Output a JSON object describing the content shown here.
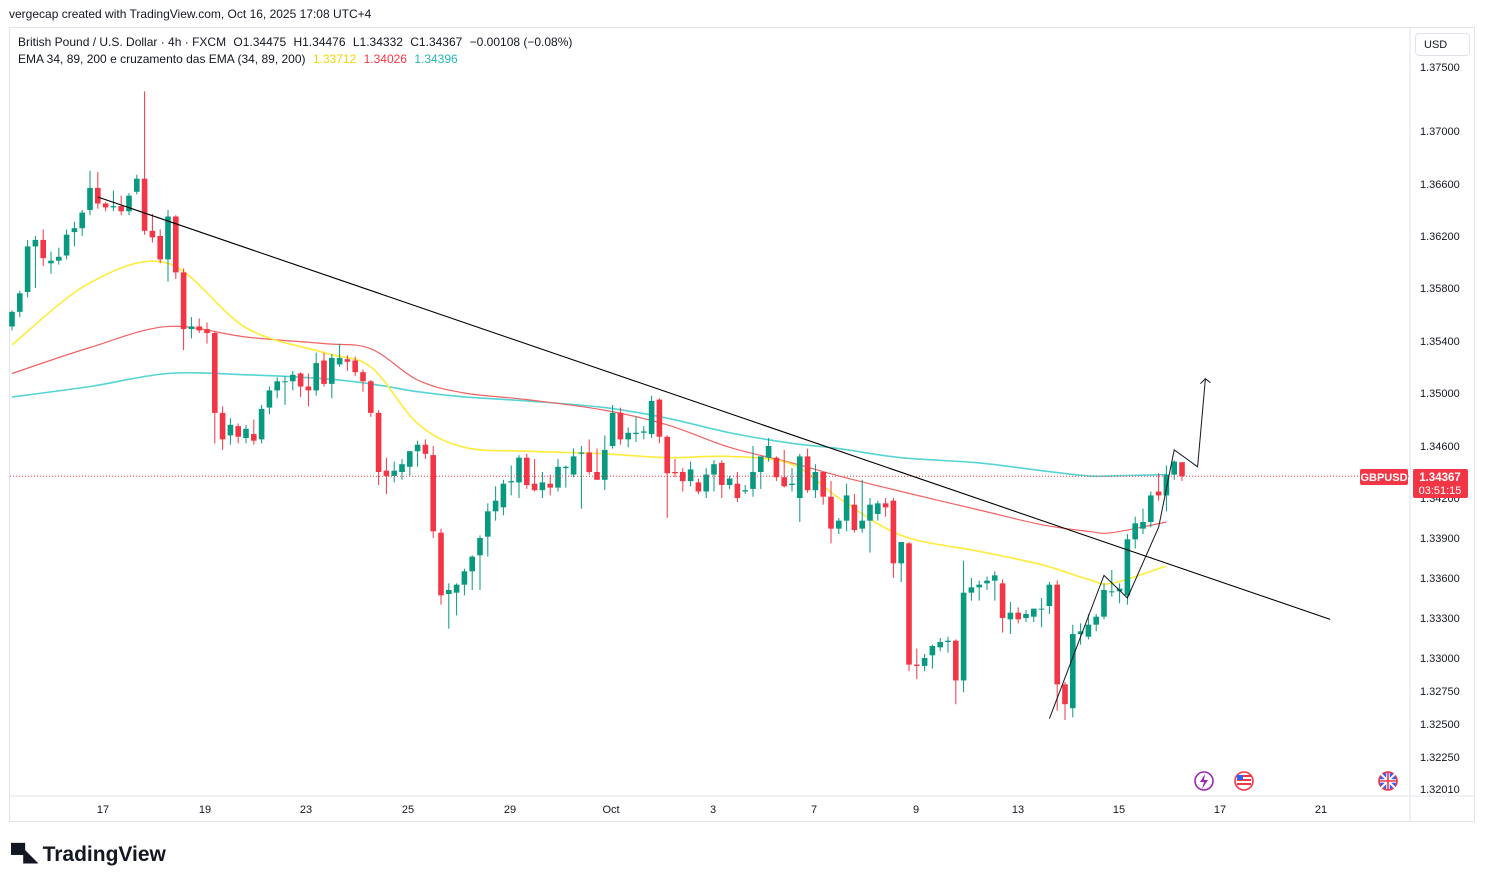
{
  "credit": "vergecap created with TradingView.com, Oct 16, 2025 17:08 UTC+4",
  "legend": {
    "symbol_line": "British Pound / U.S. Dollar · 4h · FXCM",
    "open": "O1.34475",
    "high": "H1.34476",
    "low": "L1.34332",
    "close": "C1.34367",
    "change": "−0.00108 (−0.08%)",
    "ema_label": "EMA 34, 89, 200 e cruzamento das EMA (34, 89, 200)",
    "ema34_value": "1.33712",
    "ema89_value": "1.34026",
    "ema200_value": "1.34396"
  },
  "currency": "USD",
  "price_tag": {
    "symbol": "GBPUSD",
    "price": "1.34367",
    "countdown": "03:51:15"
  },
  "logo_text": "TradingView",
  "colors": {
    "up": "#089981",
    "down": "#f23645",
    "ema34": "#ffeb3b",
    "ema89": "#f06262",
    "ema200": "#56d4d4",
    "trendline": "#000000",
    "price_line": "#f23645"
  },
  "chart_data": {
    "type": "candlestick",
    "timeframe": "4h",
    "y_axis_ticks": [
      "1.37500",
      "1.37000",
      "1.36600",
      "1.36200",
      "1.35800",
      "1.35400",
      "1.35000",
      "1.34600",
      "1.34200",
      "1.33900",
      "1.33600",
      "1.33300",
      "1.33000",
      "1.32750",
      "1.32500",
      "1.32250",
      "1.32010"
    ],
    "x_axis_ticks": [
      "17",
      "19",
      "23",
      "25",
      "29",
      "Oct",
      "3",
      "7",
      "9",
      "13",
      "15",
      "17",
      "21"
    ],
    "ylim": [
      1.3195,
      1.3775
    ],
    "candles": [
      {
        "o": 1.3551,
        "h": 1.3563,
        "l": 1.3548,
        "c": 1.3562
      },
      {
        "o": 1.3562,
        "h": 1.3578,
        "l": 1.3558,
        "c": 1.3576
      },
      {
        "o": 1.3577,
        "h": 1.3617,
        "l": 1.3573,
        "c": 1.3612
      },
      {
        "o": 1.3612,
        "h": 1.362,
        "l": 1.358,
        "c": 1.3617
      },
      {
        "o": 1.3617,
        "h": 1.3625,
        "l": 1.3597,
        "c": 1.3603
      },
      {
        "o": 1.3599,
        "h": 1.3608,
        "l": 1.3591,
        "c": 1.3601
      },
      {
        "o": 1.3601,
        "h": 1.3611,
        "l": 1.3598,
        "c": 1.3604
      },
      {
        "o": 1.3605,
        "h": 1.3625,
        "l": 1.3602,
        "c": 1.3621
      },
      {
        "o": 1.3623,
        "h": 1.3631,
        "l": 1.3612,
        "c": 1.3626
      },
      {
        "o": 1.3626,
        "h": 1.364,
        "l": 1.362,
        "c": 1.3638
      },
      {
        "o": 1.364,
        "h": 1.367,
        "l": 1.3636,
        "c": 1.3657
      },
      {
        "o": 1.3657,
        "h": 1.3669,
        "l": 1.3641,
        "c": 1.3645
      },
      {
        "o": 1.3645,
        "h": 1.3646,
        "l": 1.3639,
        "c": 1.3642
      },
      {
        "o": 1.3642,
        "h": 1.3655,
        "l": 1.3639,
        "c": 1.3643
      },
      {
        "o": 1.3643,
        "h": 1.3651,
        "l": 1.3636,
        "c": 1.3639
      },
      {
        "o": 1.3639,
        "h": 1.3653,
        "l": 1.3636,
        "c": 1.3651
      },
      {
        "o": 1.3654,
        "h": 1.3667,
        "l": 1.3652,
        "c": 1.3664
      },
      {
        "o": 1.3664,
        "h": 1.3731,
        "l": 1.3621,
        "c": 1.3624
      },
      {
        "o": 1.3624,
        "h": 1.3637,
        "l": 1.3615,
        "c": 1.3619
      },
      {
        "o": 1.362,
        "h": 1.3625,
        "l": 1.3599,
        "c": 1.3602
      },
      {
        "o": 1.3602,
        "h": 1.364,
        "l": 1.3585,
        "c": 1.3635
      },
      {
        "o": 1.3635,
        "h": 1.3636,
        "l": 1.3587,
        "c": 1.3592
      },
      {
        "o": 1.3592,
        "h": 1.3595,
        "l": 1.3533,
        "c": 1.3549
      },
      {
        "o": 1.3549,
        "h": 1.3558,
        "l": 1.3542,
        "c": 1.3551
      },
      {
        "o": 1.3551,
        "h": 1.3557,
        "l": 1.3546,
        "c": 1.3548
      },
      {
        "o": 1.3549,
        "h": 1.3554,
        "l": 1.3538,
        "c": 1.3546
      },
      {
        "o": 1.3546,
        "h": 1.3547,
        "l": 1.3462,
        "c": 1.3485
      },
      {
        "o": 1.3485,
        "h": 1.349,
        "l": 1.3457,
        "c": 1.3465
      },
      {
        "o": 1.3468,
        "h": 1.3481,
        "l": 1.3461,
        "c": 1.3476
      },
      {
        "o": 1.3475,
        "h": 1.3477,
        "l": 1.3462,
        "c": 1.3467
      },
      {
        "o": 1.3466,
        "h": 1.3476,
        "l": 1.3462,
        "c": 1.3473
      },
      {
        "o": 1.3469,
        "h": 1.348,
        "l": 1.3461,
        "c": 1.3464
      },
      {
        "o": 1.3465,
        "h": 1.3491,
        "l": 1.3462,
        "c": 1.3488
      },
      {
        "o": 1.3489,
        "h": 1.3505,
        "l": 1.3484,
        "c": 1.3502
      },
      {
        "o": 1.3502,
        "h": 1.3512,
        "l": 1.3496,
        "c": 1.3509
      },
      {
        "o": 1.3509,
        "h": 1.3513,
        "l": 1.3491,
        "c": 1.3509
      },
      {
        "o": 1.3509,
        "h": 1.3517,
        "l": 1.3502,
        "c": 1.3514
      },
      {
        "o": 1.3515,
        "h": 1.3516,
        "l": 1.3497,
        "c": 1.3505
      },
      {
        "o": 1.3505,
        "h": 1.3515,
        "l": 1.349,
        "c": 1.3502
      },
      {
        "o": 1.3502,
        "h": 1.3531,
        "l": 1.3498,
        "c": 1.3523
      },
      {
        "o": 1.3525,
        "h": 1.3531,
        "l": 1.3505,
        "c": 1.3507
      },
      {
        "o": 1.3507,
        "h": 1.353,
        "l": 1.3496,
        "c": 1.3527
      },
      {
        "o": 1.3522,
        "h": 1.3538,
        "l": 1.352,
        "c": 1.3527
      },
      {
        "o": 1.3526,
        "h": 1.3529,
        "l": 1.3517,
        "c": 1.3524
      },
      {
        "o": 1.3525,
        "h": 1.3528,
        "l": 1.3513,
        "c": 1.3516
      },
      {
        "o": 1.3516,
        "h": 1.3518,
        "l": 1.3501,
        "c": 1.3509
      },
      {
        "o": 1.3509,
        "h": 1.351,
        "l": 1.3482,
        "c": 1.3485
      },
      {
        "o": 1.3485,
        "h": 1.3487,
        "l": 1.343,
        "c": 1.344
      },
      {
        "o": 1.3441,
        "h": 1.3451,
        "l": 1.3423,
        "c": 1.3437
      },
      {
        "o": 1.3437,
        "h": 1.3448,
        "l": 1.3432,
        "c": 1.3441
      },
      {
        "o": 1.344,
        "h": 1.345,
        "l": 1.3434,
        "c": 1.3446
      },
      {
        "o": 1.3444,
        "h": 1.3456,
        "l": 1.3437,
        "c": 1.3456
      },
      {
        "o": 1.3456,
        "h": 1.3464,
        "l": 1.3444,
        "c": 1.3461
      },
      {
        "o": 1.3461,
        "h": 1.3465,
        "l": 1.345,
        "c": 1.3454
      },
      {
        "o": 1.3453,
        "h": 1.346,
        "l": 1.339,
        "c": 1.3395
      },
      {
        "o": 1.3394,
        "h": 1.3397,
        "l": 1.334,
        "c": 1.3347
      },
      {
        "o": 1.3348,
        "h": 1.3356,
        "l": 1.3322,
        "c": 1.3351
      },
      {
        "o": 1.3349,
        "h": 1.3356,
        "l": 1.3332,
        "c": 1.3355
      },
      {
        "o": 1.3355,
        "h": 1.3367,
        "l": 1.3347,
        "c": 1.3365
      },
      {
        "o": 1.3365,
        "h": 1.3377,
        "l": 1.3351,
        "c": 1.3376
      },
      {
        "o": 1.3377,
        "h": 1.3392,
        "l": 1.3351,
        "c": 1.339
      },
      {
        "o": 1.3391,
        "h": 1.3416,
        "l": 1.3376,
        "c": 1.341
      },
      {
        "o": 1.341,
        "h": 1.3429,
        "l": 1.3403,
        "c": 1.3418
      },
      {
        "o": 1.3413,
        "h": 1.3434,
        "l": 1.3407,
        "c": 1.3431
      },
      {
        "o": 1.3432,
        "h": 1.3445,
        "l": 1.3422,
        "c": 1.3433
      },
      {
        "o": 1.3432,
        "h": 1.3453,
        "l": 1.342,
        "c": 1.3451
      },
      {
        "o": 1.3451,
        "h": 1.3454,
        "l": 1.3427,
        "c": 1.343
      },
      {
        "o": 1.3431,
        "h": 1.345,
        "l": 1.3425,
        "c": 1.3426
      },
      {
        "o": 1.3426,
        "h": 1.344,
        "l": 1.342,
        "c": 1.3432
      },
      {
        "o": 1.3431,
        "h": 1.3438,
        "l": 1.3422,
        "c": 1.3428
      },
      {
        "o": 1.3428,
        "h": 1.345,
        "l": 1.3425,
        "c": 1.3444
      },
      {
        "o": 1.3443,
        "h": 1.3445,
        "l": 1.3428,
        "c": 1.3444
      },
      {
        "o": 1.3438,
        "h": 1.3458,
        "l": 1.3436,
        "c": 1.3452
      },
      {
        "o": 1.3454,
        "h": 1.346,
        "l": 1.3412,
        "c": 1.3455
      },
      {
        "o": 1.3455,
        "h": 1.3465,
        "l": 1.3438,
        "c": 1.344
      },
      {
        "o": 1.344,
        "h": 1.3458,
        "l": 1.3435,
        "c": 1.3434
      },
      {
        "o": 1.3434,
        "h": 1.3468,
        "l": 1.3426,
        "c": 1.3457
      },
      {
        "o": 1.346,
        "h": 1.3491,
        "l": 1.3458,
        "c": 1.3485
      },
      {
        "o": 1.3485,
        "h": 1.3489,
        "l": 1.3461,
        "c": 1.3465
      },
      {
        "o": 1.3465,
        "h": 1.3474,
        "l": 1.3459,
        "c": 1.347
      },
      {
        "o": 1.3469,
        "h": 1.3482,
        "l": 1.3463,
        "c": 1.347
      },
      {
        "o": 1.347,
        "h": 1.3475,
        "l": 1.3465,
        "c": 1.3471
      },
      {
        "o": 1.3469,
        "h": 1.3498,
        "l": 1.3466,
        "c": 1.3494
      },
      {
        "o": 1.3495,
        "h": 1.3496,
        "l": 1.3462,
        "c": 1.3467
      },
      {
        "o": 1.3467,
        "h": 1.3468,
        "l": 1.3405,
        "c": 1.3439
      },
      {
        "o": 1.344,
        "h": 1.345,
        "l": 1.3436,
        "c": 1.3439
      },
      {
        "o": 1.344,
        "h": 1.3443,
        "l": 1.3425,
        "c": 1.3433
      },
      {
        "o": 1.3433,
        "h": 1.3448,
        "l": 1.3429,
        "c": 1.3442
      },
      {
        "o": 1.3432,
        "h": 1.3435,
        "l": 1.3423,
        "c": 1.3425
      },
      {
        "o": 1.3425,
        "h": 1.3443,
        "l": 1.342,
        "c": 1.3438
      },
      {
        "o": 1.3438,
        "h": 1.3449,
        "l": 1.3425,
        "c": 1.3446
      },
      {
        "o": 1.3447,
        "h": 1.3449,
        "l": 1.342,
        "c": 1.343
      },
      {
        "o": 1.343,
        "h": 1.3437,
        "l": 1.3427,
        "c": 1.3435
      },
      {
        "o": 1.3431,
        "h": 1.344,
        "l": 1.3417,
        "c": 1.342
      },
      {
        "o": 1.3425,
        "h": 1.343,
        "l": 1.3423,
        "c": 1.3426
      },
      {
        "o": 1.3427,
        "h": 1.346,
        "l": 1.3421,
        "c": 1.344
      },
      {
        "o": 1.344,
        "h": 1.3451,
        "l": 1.3427,
        "c": 1.3452
      },
      {
        "o": 1.3451,
        "h": 1.3466,
        "l": 1.3448,
        "c": 1.346
      },
      {
        "o": 1.3451,
        "h": 1.3452,
        "l": 1.3433,
        "c": 1.3436
      },
      {
        "o": 1.3436,
        "h": 1.3457,
        "l": 1.3428,
        "c": 1.3429
      },
      {
        "o": 1.343,
        "h": 1.3443,
        "l": 1.3425,
        "c": 1.3431
      },
      {
        "o": 1.342,
        "h": 1.3454,
        "l": 1.3402,
        "c": 1.3452
      },
      {
        "o": 1.3452,
        "h": 1.3458,
        "l": 1.3424,
        "c": 1.3426
      },
      {
        "o": 1.3426,
        "h": 1.3446,
        "l": 1.342,
        "c": 1.344
      },
      {
        "o": 1.344,
        "h": 1.3438,
        "l": 1.3415,
        "c": 1.3421
      },
      {
        "o": 1.3421,
        "h": 1.3433,
        "l": 1.3386,
        "c": 1.3397
      },
      {
        "o": 1.3397,
        "h": 1.3405,
        "l": 1.3393,
        "c": 1.3403
      },
      {
        "o": 1.3403,
        "h": 1.3431,
        "l": 1.3395,
        "c": 1.3422
      },
      {
        "o": 1.3415,
        "h": 1.3423,
        "l": 1.3394,
        "c": 1.3396
      },
      {
        "o": 1.3397,
        "h": 1.3434,
        "l": 1.3394,
        "c": 1.3403
      },
      {
        "o": 1.3403,
        "h": 1.342,
        "l": 1.3379,
        "c": 1.3415
      },
      {
        "o": 1.3408,
        "h": 1.3418,
        "l": 1.3403,
        "c": 1.3416
      },
      {
        "o": 1.3416,
        "h": 1.342,
        "l": 1.3406,
        "c": 1.3413
      },
      {
        "o": 1.3418,
        "h": 1.342,
        "l": 1.336,
        "c": 1.3371
      },
      {
        "o": 1.3371,
        "h": 1.3382,
        "l": 1.3357,
        "c": 1.3387
      },
      {
        "o": 1.3386,
        "h": 1.3387,
        "l": 1.329,
        "c": 1.3295
      },
      {
        "o": 1.3295,
        "h": 1.3307,
        "l": 1.3284,
        "c": 1.3294
      },
      {
        "o": 1.3294,
        "h": 1.3303,
        "l": 1.329,
        "c": 1.33
      },
      {
        "o": 1.3302,
        "h": 1.331,
        "l": 1.3292,
        "c": 1.3309
      },
      {
        "o": 1.3308,
        "h": 1.3315,
        "l": 1.3305,
        "c": 1.3312
      },
      {
        "o": 1.3312,
        "h": 1.3316,
        "l": 1.3304,
        "c": 1.3313
      },
      {
        "o": 1.3313,
        "h": 1.3314,
        "l": 1.3265,
        "c": 1.3283
      },
      {
        "o": 1.3283,
        "h": 1.3373,
        "l": 1.3274,
        "c": 1.3349
      },
      {
        "o": 1.3349,
        "h": 1.336,
        "l": 1.3343,
        "c": 1.3353
      },
      {
        "o": 1.3353,
        "h": 1.3358,
        "l": 1.3343,
        "c": 1.3355
      },
      {
        "o": 1.3356,
        "h": 1.3361,
        "l": 1.3351,
        "c": 1.3358
      },
      {
        "o": 1.3358,
        "h": 1.3365,
        "l": 1.3343,
        "c": 1.3362
      },
      {
        "o": 1.3356,
        "h": 1.3359,
        "l": 1.3319,
        "c": 1.333
      },
      {
        "o": 1.3329,
        "h": 1.3342,
        "l": 1.3318,
        "c": 1.3334
      },
      {
        "o": 1.3334,
        "h": 1.3338,
        "l": 1.3326,
        "c": 1.3329
      },
      {
        "o": 1.333,
        "h": 1.3336,
        "l": 1.3327,
        "c": 1.3333
      },
      {
        "o": 1.3331,
        "h": 1.3337,
        "l": 1.3327,
        "c": 1.3337
      },
      {
        "o": 1.3337,
        "h": 1.3345,
        "l": 1.3323,
        "c": 1.3337
      },
      {
        "o": 1.3339,
        "h": 1.3357,
        "l": 1.3333,
        "c": 1.3355
      },
      {
        "o": 1.3355,
        "h": 1.3358,
        "l": 1.326,
        "c": 1.328
      },
      {
        "o": 1.328,
        "h": 1.3282,
        "l": 1.3253,
        "c": 1.3265
      },
      {
        "o": 1.3262,
        "h": 1.3325,
        "l": 1.3255,
        "c": 1.3318
      },
      {
        "o": 1.3318,
        "h": 1.3326,
        "l": 1.331,
        "c": 1.332
      },
      {
        "o": 1.3316,
        "h": 1.3333,
        "l": 1.3314,
        "c": 1.3325
      },
      {
        "o": 1.3325,
        "h": 1.3333,
        "l": 1.332,
        "c": 1.3331
      },
      {
        "o": 1.3331,
        "h": 1.3356,
        "l": 1.3329,
        "c": 1.3351
      },
      {
        "o": 1.335,
        "h": 1.3366,
        "l": 1.3346,
        "c": 1.335
      },
      {
        "o": 1.335,
        "h": 1.3356,
        "l": 1.3341,
        "c": 1.3352
      },
      {
        "o": 1.3347,
        "h": 1.3393,
        "l": 1.334,
        "c": 1.3389
      },
      {
        "o": 1.3389,
        "h": 1.3406,
        "l": 1.3382,
        "c": 1.3401
      },
      {
        "o": 1.3397,
        "h": 1.3412,
        "l": 1.3393,
        "c": 1.3402
      },
      {
        "o": 1.3402,
        "h": 1.3425,
        "l": 1.3398,
        "c": 1.3422
      },
      {
        "o": 1.3425,
        "h": 1.3439,
        "l": 1.3418,
        "c": 1.3422
      },
      {
        "o": 1.3422,
        "h": 1.3445,
        "l": 1.341,
        "c": 1.3438
      },
      {
        "o": 1.3438,
        "h": 1.3449,
        "l": 1.3434,
        "c": 1.3448
      },
      {
        "o": 1.34475,
        "h": 1.34476,
        "l": 1.34332,
        "c": 1.34367
      }
    ],
    "ema34": [
      [
        0,
        1.3537
      ],
      [
        10,
        1.3584
      ],
      [
        20,
        1.3599
      ],
      [
        30,
        1.355
      ],
      [
        40,
        1.3531
      ],
      [
        46,
        1.352
      ],
      [
        52,
        1.3477
      ],
      [
        58,
        1.3459
      ],
      [
        66,
        1.3456
      ],
      [
        76,
        1.3454
      ],
      [
        84,
        1.3451
      ],
      [
        92,
        1.3452
      ],
      [
        100,
        1.3446
      ],
      [
        106,
        1.342
      ],
      [
        114,
        1.3392
      ],
      [
        124,
        1.338
      ],
      [
        132,
        1.337
      ],
      [
        138,
        1.3359
      ],
      [
        141,
        1.3356
      ],
      [
        148,
        1.3369
      ]
    ],
    "ema89": [
      [
        0,
        1.3515
      ],
      [
        10,
        1.3535
      ],
      [
        20,
        1.3551
      ],
      [
        30,
        1.3543
      ],
      [
        40,
        1.3538
      ],
      [
        46,
        1.3534
      ],
      [
        52,
        1.351
      ],
      [
        58,
        1.35
      ],
      [
        66,
        1.3495
      ],
      [
        76,
        1.3487
      ],
      [
        84,
        1.3476
      ],
      [
        92,
        1.3459
      ],
      [
        100,
        1.3447
      ],
      [
        106,
        1.3437
      ],
      [
        114,
        1.3425
      ],
      [
        124,
        1.3411
      ],
      [
        132,
        1.34
      ],
      [
        138,
        1.3395
      ],
      [
        141,
        1.3394
      ],
      [
        148,
        1.3402
      ]
    ],
    "ema200": [
      [
        0,
        1.3497
      ],
      [
        10,
        1.3505
      ],
      [
        20,
        1.3515
      ],
      [
        30,
        1.3514
      ],
      [
        40,
        1.3511
      ],
      [
        46,
        1.3507
      ],
      [
        52,
        1.3501
      ],
      [
        58,
        1.3497
      ],
      [
        66,
        1.3494
      ],
      [
        76,
        1.3489
      ],
      [
        84,
        1.3481
      ],
      [
        92,
        1.347
      ],
      [
        100,
        1.3462
      ],
      [
        106,
        1.3458
      ],
      [
        114,
        1.3451
      ],
      [
        124,
        1.3447
      ],
      [
        132,
        1.3441
      ],
      [
        138,
        1.3437
      ],
      [
        141,
        1.3437
      ],
      [
        148,
        1.3438
      ]
    ],
    "trendline": [
      [
        11,
        1.365
      ],
      [
        169,
        1.3329
      ]
    ],
    "projection": [
      [
        133,
        1.3254
      ],
      [
        140,
        1.3362
      ],
      [
        143,
        1.3345
      ],
      [
        147,
        1.3398
      ],
      [
        149,
        1.3457
      ],
      [
        152,
        1.3444
      ],
      [
        153,
        1.3511
      ]
    ],
    "current_price": 1.34367
  }
}
